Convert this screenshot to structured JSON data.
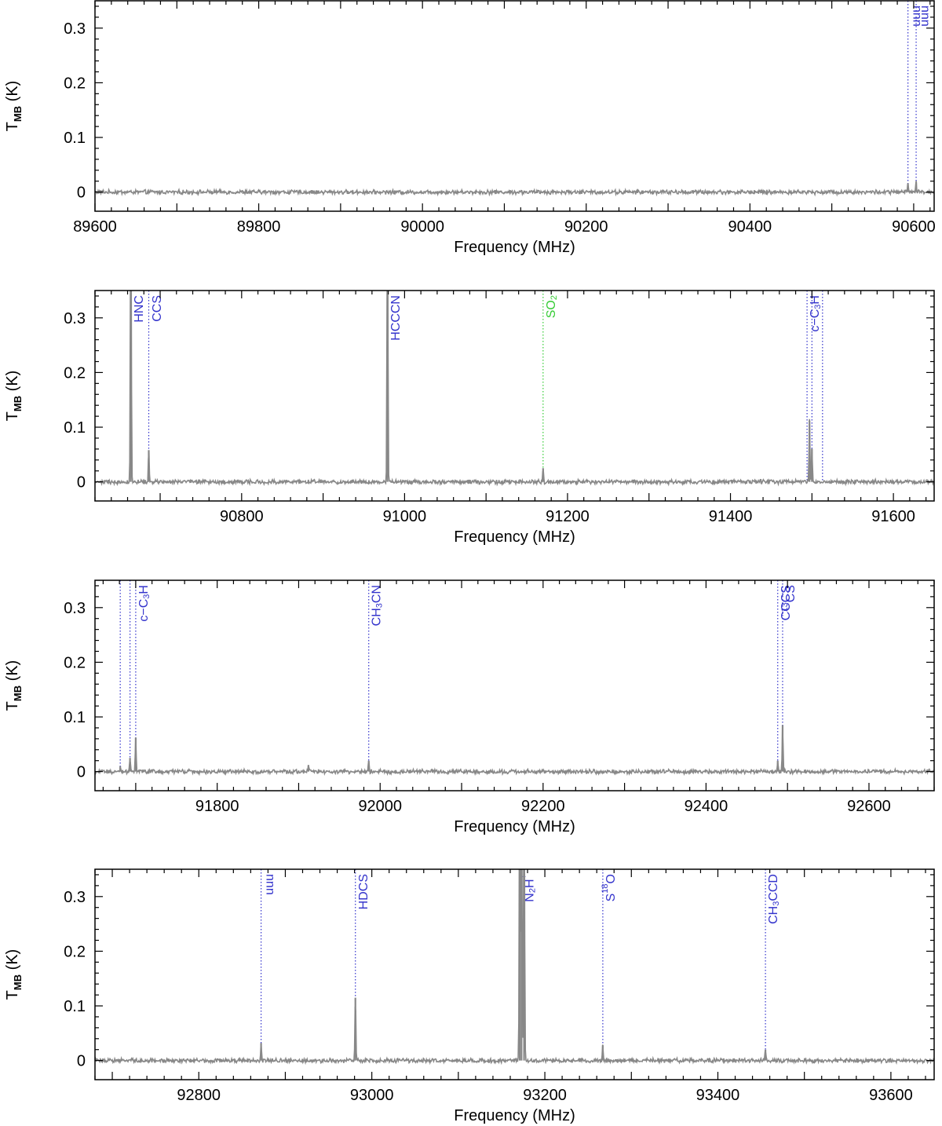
{
  "chart_data": [
    {
      "type": "line",
      "xlabel": "Frequency (MHz)",
      "ylabel": "T",
      "ylabel_sub": "MB",
      "ylabel_unit": "(K)",
      "xlim": [
        89600,
        90625
      ],
      "ylim": [
        -0.035,
        0.35
      ],
      "xticks": [
        89600,
        89800,
        90000,
        90200,
        90400,
        90600
      ],
      "yticks": [
        0,
        0.1,
        0.2,
        0.3
      ],
      "ytick_labels": [
        "0",
        "0.1",
        "0.2",
        "0.3"
      ],
      "grid": false,
      "noise": 0.003,
      "peaks": [
        {
          "x": 90593,
          "y": 0.016
        },
        {
          "x": 90603,
          "y": 0.018
        }
      ],
      "markers": [
        {
          "x": 90593,
          "label": "uuu",
          "color": "#3333cc"
        },
        {
          "x": 90603,
          "label": "uuu",
          "color": "#3333cc"
        }
      ]
    },
    {
      "type": "line",
      "xlabel": "Frequency (MHz)",
      "ylabel": "T",
      "ylabel_sub": "MB",
      "ylabel_unit": "(K)",
      "xlim": [
        90620,
        91650
      ],
      "ylim": [
        -0.035,
        0.35
      ],
      "xticks": [
        90800,
        91000,
        91200,
        91400,
        91600
      ],
      "yticks": [
        0,
        0.1,
        0.2,
        0.3
      ],
      "ytick_labels": [
        "0",
        "0.1",
        "0.2",
        "0.3"
      ],
      "grid": false,
      "noise": 0.003,
      "peaks": [
        {
          "x": 90664,
          "y": 0.6
        },
        {
          "x": 90686,
          "y": 0.058
        },
        {
          "x": 90979,
          "y": 0.6
        },
        {
          "x": 91170,
          "y": 0.025
        },
        {
          "x": 91497,
          "y": 0.112
        },
        {
          "x": 91500,
          "y": 0.06
        }
      ],
      "markers": [
        {
          "x": 90664,
          "label": "HNC",
          "color": "#3333cc"
        },
        {
          "x": 90686,
          "label": "CCS",
          "color": "#3333cc"
        },
        {
          "x": 90979,
          "label": "HCCCN",
          "color": "#3333cc"
        },
        {
          "x": 91170,
          "label": "SO2",
          "color": "#33cc33"
        },
        {
          "x": 91494,
          "label": "c-C3H",
          "color": "#3333cc"
        },
        {
          "x": 91500,
          "label": "",
          "color": "#3333cc"
        },
        {
          "x": 91513,
          "label": "",
          "color": "#3333cc"
        }
      ]
    },
    {
      "type": "line",
      "xlabel": "Frequency (MHz)",
      "ylabel": "T",
      "ylabel_sub": "MB",
      "ylabel_unit": "(K)",
      "xlim": [
        91650,
        92680
      ],
      "ylim": [
        -0.035,
        0.35
      ],
      "xticks": [
        91800,
        92000,
        92200,
        92400,
        92600
      ],
      "yticks": [
        0,
        0.1,
        0.2,
        0.3
      ],
      "ytick_labels": [
        "0",
        "0.1",
        "0.2",
        "0.3"
      ],
      "grid": false,
      "noise": 0.003,
      "peaks": [
        {
          "x": 91681,
          "y": 0.01
        },
        {
          "x": 91693,
          "y": 0.025
        },
        {
          "x": 91700,
          "y": 0.062
        },
        {
          "x": 91912,
          "y": 0.012
        },
        {
          "x": 91986,
          "y": 0.02
        },
        {
          "x": 92488,
          "y": 0.02
        },
        {
          "x": 92494,
          "y": 0.085
        }
      ],
      "markers": [
        {
          "x": 91681,
          "label": "",
          "color": "#3333cc"
        },
        {
          "x": 91693,
          "label": "",
          "color": "#3333cc"
        },
        {
          "x": 91700,
          "label": "c-C3H",
          "color": "#3333cc"
        },
        {
          "x": 91986,
          "label": "CH3CN",
          "color": "#3333cc"
        },
        {
          "x": 92488,
          "label": "CCCS",
          "color": "#3333cc"
        },
        {
          "x": 92494,
          "label": "13CS",
          "color": "#3333cc"
        }
      ]
    },
    {
      "type": "line",
      "xlabel": "Frequency (MHz)",
      "ylabel": "T",
      "ylabel_sub": "MB",
      "ylabel_unit": "(K)",
      "xlim": [
        92680,
        93650
      ],
      "ylim": [
        -0.035,
        0.35
      ],
      "xticks": [
        92800,
        93000,
        93200,
        93400,
        93600
      ],
      "yticks": [
        0,
        0.1,
        0.2,
        0.3
      ],
      "ytick_labels": [
        "0",
        "0.1",
        "0.2",
        "0.3"
      ],
      "grid": false,
      "noise": 0.003,
      "peaks": [
        {
          "x": 92872,
          "y": 0.032
        },
        {
          "x": 92981,
          "y": 0.115
        },
        {
          "x": 93171,
          "y": 0.6
        },
        {
          "x": 93173,
          "y": 0.6
        },
        {
          "x": 93176,
          "y": 0.6
        },
        {
          "x": 93267,
          "y": 0.028
        },
        {
          "x": 93455,
          "y": 0.02
        }
      ],
      "markers": [
        {
          "x": 92872,
          "label": "uuu",
          "color": "#3333cc"
        },
        {
          "x": 92981,
          "label": "HDCS",
          "color": "#3333cc"
        },
        {
          "x": 93173,
          "label": "N2H+",
          "color": "#3333cc"
        },
        {
          "x": 93267,
          "label": "S18O",
          "color": "#3333cc"
        },
        {
          "x": 93455,
          "label": "CH3CCD",
          "color": "#3333cc"
        }
      ]
    }
  ]
}
